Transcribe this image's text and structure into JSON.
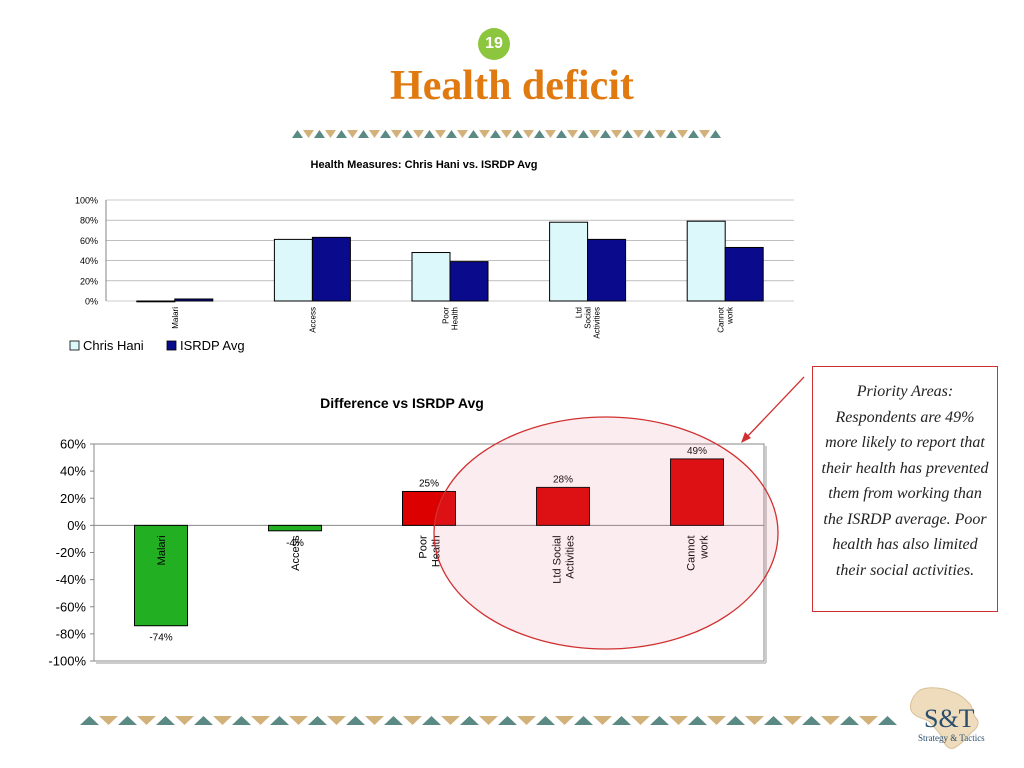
{
  "slide": {
    "number": "19",
    "title": "Health deficit",
    "callout": "Priority Areas: Respondents are 49% more likely to report that their health has prevented them from working than the ISRDP average. Poor health has also limited their social activities.",
    "logo_main": "S&T",
    "logo_sub": "Strategy & Tactics"
  },
  "colors": {
    "title": "#e07a10",
    "badge": "#8cc63f",
    "chris_hani": "#ddf8fb",
    "isrdp": "#0a0a8c",
    "negative": "#22b022",
    "positive": "#dd0000",
    "ellipse": "#d03030",
    "border_teal": "#5b8a84",
    "border_tan": "#d2b27a"
  },
  "chart_data": [
    {
      "type": "bar",
      "title": "Health Measures: Chris Hani vs. ISRDP Avg",
      "categories": [
        "Malari",
        "Access",
        "Poor Health",
        "Ltd Social Activities",
        "Cannot work"
      ],
      "series": [
        {
          "name": "Chris Hani",
          "values": [
            0,
            61,
            48,
            78,
            79
          ]
        },
        {
          "name": "ISRDP Avg",
          "values": [
            2,
            63,
            39,
            61,
            53
          ]
        }
      ],
      "ylim": [
        0,
        100
      ],
      "yticks": [
        "0%",
        "20%",
        "40%",
        "60%",
        "80%",
        "100%"
      ],
      "grid": true,
      "legend": "bottom-left"
    },
    {
      "type": "bar",
      "title": "Difference vs ISRDP Avg",
      "categories": [
        "Malari",
        "Access",
        "Poor Health",
        "Ltd Social Activities",
        "Cannot work"
      ],
      "values": [
        -74,
        -4,
        25,
        28,
        49
      ],
      "labels": [
        "-74%",
        "-4%",
        "25%",
        "28%",
        "49%"
      ],
      "ylim": [
        -100,
        60
      ],
      "yticks": [
        "-100%",
        "-80%",
        "-60%",
        "-40%",
        "-20%",
        "0%",
        "20%",
        "40%",
        "60%"
      ],
      "grid": false
    }
  ]
}
